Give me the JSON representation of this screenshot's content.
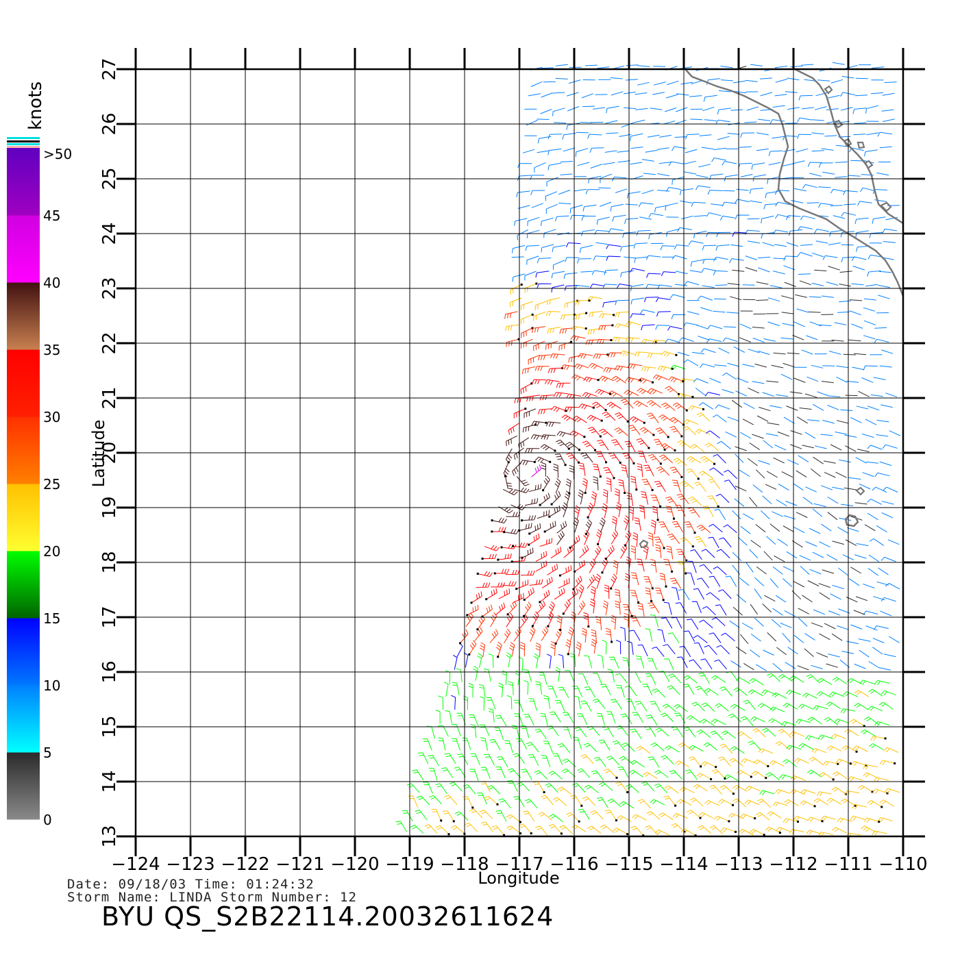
{
  "legend": {
    "unit_label": "knots",
    "tick_labels": [
      "0",
      "5",
      "10",
      "15",
      "20",
      "25",
      "30",
      "35",
      "40",
      "45",
      ">50"
    ],
    "bands": [
      {
        "from": 0,
        "to": 5,
        "colors": [
          "#8a8a8a",
          "#2a2a2a"
        ]
      },
      {
        "from": 5,
        "to": 10,
        "colors": [
          "#00ffff",
          "#0080ff"
        ]
      },
      {
        "from": 10,
        "to": 15,
        "colors": [
          "#0078ff",
          "#0000ff"
        ]
      },
      {
        "from": 15,
        "to": 20,
        "colors": [
          "#006400",
          "#00ff00"
        ]
      },
      {
        "from": 20,
        "to": 25,
        "colors": [
          "#ffff30",
          "#ffc000"
        ]
      },
      {
        "from": 25,
        "to": 30,
        "colors": [
          "#ff8000",
          "#ff3000"
        ]
      },
      {
        "from": 30,
        "to": 35,
        "colors": [
          "#ff2000",
          "#ff0000"
        ]
      },
      {
        "from": 35,
        "to": 40,
        "colors": [
          "#c88050",
          "#401010"
        ]
      },
      {
        "from": 40,
        "to": 45,
        "colors": [
          "#ff00ff",
          "#d000e0"
        ]
      },
      {
        "from": 45,
        "to": 50,
        "colors": [
          "#a000c0",
          "#6000c0"
        ]
      }
    ]
  },
  "axes": {
    "xlabel": "Longitude",
    "ylabel": "Latitude",
    "lon_range": [
      -124,
      -110
    ],
    "lat_range": [
      13,
      27
    ],
    "lon_ticks": [
      "−124",
      "−123",
      "−122",
      "−121",
      "−120",
      "−119",
      "−118",
      "−117",
      "−116",
      "−115",
      "−114",
      "−113",
      "−112",
      "−111",
      "−110"
    ],
    "lat_ticks": [
      "13",
      "14",
      "15",
      "16",
      "17",
      "18",
      "19",
      "20",
      "21",
      "22",
      "23",
      "24",
      "25",
      "26",
      "27"
    ]
  },
  "storm_center": {
    "lon": -116.8,
    "lat": 19.6
  },
  "info": {
    "line1": "Date: 09/18/03   Time: 01:24:32",
    "line2": "Storm Name: LINDA   Storm Number: 12",
    "title": "BYU QS_S2B22114.20032611624"
  }
}
